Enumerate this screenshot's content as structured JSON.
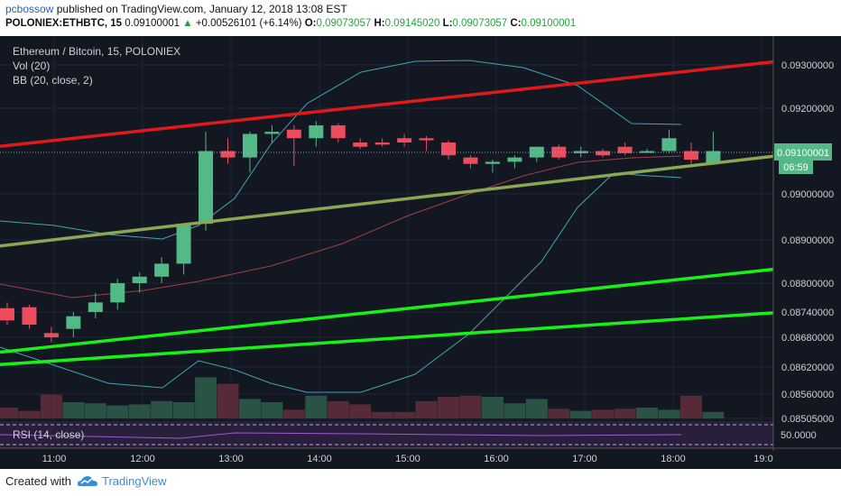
{
  "header": {
    "author": "pcbossow",
    "published_text": "published on TradingView.com, January 12, 2018 13:08 EST",
    "symbol": "POLONIEX:ETHBTC, 15",
    "last": "0.09100001",
    "change": "+0.00526101 (+6.14%)",
    "open_label": "O:",
    "open": "0.09073057",
    "high_label": "H:",
    "high": "0.09145020",
    "low_label": "L:",
    "low": "0.09073057",
    "close_label": "C:",
    "close": "0.09100001"
  },
  "legend": {
    "title": "Ethereum / Bitcoin, 15, POLONIEX",
    "vol": "Vol (20)",
    "bb": "BB (20, close, 2)",
    "rsi": "RSI (14, close)"
  },
  "price_axis": {
    "labels": [
      "0.09300000",
      "0.09200000",
      "0.09000000",
      "0.08900000",
      "0.08800000",
      "0.08740000",
      "0.08680000",
      "0.08620000",
      "0.08560000",
      "0.08505000"
    ],
    "current_price": "0.09100001",
    "countdown": "06:59",
    "rsi_label": "50.0000"
  },
  "time_axis": {
    "labels": [
      "11:00",
      "12:00",
      "13:00",
      "14:00",
      "15:00",
      "16:00",
      "17:00",
      "18:00",
      "19:0"
    ]
  },
  "colors": {
    "background": "#131722",
    "bull": "#53b987",
    "bear": "#eb4d5c",
    "red_line": "#e01a1a",
    "olive_line": "#8aa851",
    "green_line": "#18f018",
    "bb_band": "#3ea6b2",
    "bb_basis": "#a04040"
  },
  "chart_data": {
    "type": "candlestick",
    "title": "Ethereum / Bitcoin, 15, POLONIEX",
    "candles": [
      {
        "o": 0.08748,
        "h": 0.0876,
        "l": 0.0871,
        "c": 0.0872
      },
      {
        "o": 0.0875,
        "h": 0.08755,
        "l": 0.087,
        "c": 0.0871
      },
      {
        "o": 0.0869,
        "h": 0.08705,
        "l": 0.0867,
        "c": 0.0868
      },
      {
        "o": 0.087,
        "h": 0.0874,
        "l": 0.0868,
        "c": 0.0873
      },
      {
        "o": 0.0874,
        "h": 0.0878,
        "l": 0.08725,
        "c": 0.0876
      },
      {
        "o": 0.0876,
        "h": 0.0881,
        "l": 0.08745,
        "c": 0.088
      },
      {
        "o": 0.088,
        "h": 0.08825,
        "l": 0.0878,
        "c": 0.08815
      },
      {
        "o": 0.08815,
        "h": 0.0886,
        "l": 0.088,
        "c": 0.08845
      },
      {
        "o": 0.08845,
        "h": 0.08935,
        "l": 0.0882,
        "c": 0.08935
      },
      {
        "o": 0.08935,
        "h": 0.09145,
        "l": 0.0892,
        "c": 0.091
      },
      {
        "o": 0.091,
        "h": 0.0913,
        "l": 0.0907,
        "c": 0.09085
      },
      {
        "o": 0.09085,
        "h": 0.09145,
        "l": 0.0905,
        "c": 0.0914
      },
      {
        "o": 0.0914,
        "h": 0.0916,
        "l": 0.0912,
        "c": 0.09145
      },
      {
        "o": 0.0915,
        "h": 0.0916,
        "l": 0.09065,
        "c": 0.0913
      },
      {
        "o": 0.0913,
        "h": 0.0917,
        "l": 0.0911,
        "c": 0.0916
      },
      {
        "o": 0.0916,
        "h": 0.09165,
        "l": 0.0912,
        "c": 0.0913
      },
      {
        "o": 0.0912,
        "h": 0.0913,
        "l": 0.09105,
        "c": 0.0911
      },
      {
        "o": 0.0912,
        "h": 0.0913,
        "l": 0.0911,
        "c": 0.09115
      },
      {
        "o": 0.0913,
        "h": 0.0914,
        "l": 0.0911,
        "c": 0.0912
      },
      {
        "o": 0.0913,
        "h": 0.09135,
        "l": 0.091,
        "c": 0.09125
      },
      {
        "o": 0.0912,
        "h": 0.09125,
        "l": 0.0908,
        "c": 0.0909
      },
      {
        "o": 0.09085,
        "h": 0.0909,
        "l": 0.0906,
        "c": 0.0907
      },
      {
        "o": 0.0907,
        "h": 0.0908,
        "l": 0.0905,
        "c": 0.09075
      },
      {
        "o": 0.09075,
        "h": 0.0909,
        "l": 0.0906,
        "c": 0.09085
      },
      {
        "o": 0.09085,
        "h": 0.0911,
        "l": 0.09075,
        "c": 0.0911
      },
      {
        "o": 0.0911,
        "h": 0.09115,
        "l": 0.0908,
        "c": 0.09085
      },
      {
        "o": 0.09095,
        "h": 0.0911,
        "l": 0.09085,
        "c": 0.091
      },
      {
        "o": 0.091,
        "h": 0.09105,
        "l": 0.09085,
        "c": 0.0909
      },
      {
        "o": 0.0911,
        "h": 0.0912,
        "l": 0.0909,
        "c": 0.09095
      },
      {
        "o": 0.091,
        "h": 0.09105,
        "l": 0.09095,
        "c": 0.091
      },
      {
        "o": 0.091,
        "h": 0.0915,
        "l": 0.09095,
        "c": 0.0913
      },
      {
        "o": 0.091,
        "h": 0.0912,
        "l": 0.0907,
        "c": 0.0908
      },
      {
        "o": 0.09073,
        "h": 0.09145,
        "l": 0.09073,
        "c": 0.091
      }
    ],
    "volume": [
      1,
      0.7,
      2.2,
      1.5,
      1.4,
      1.2,
      1.3,
      1.6,
      1.5,
      3.8,
      3.2,
      1.8,
      1.5,
      0.8,
      2.1,
      1.6,
      1.3,
      0.6,
      0.6,
      1.6,
      2.0,
      2.1,
      2.0,
      1.4,
      1.8,
      0.9,
      0.7,
      0.8,
      0.9,
      1.0,
      0.8,
      2.1,
      0.6
    ],
    "lines": [
      {
        "name": "red",
        "color": "red_line",
        "x0": 0,
        "y0": 0.09111,
        "x1": 34,
        "y1": 0.09307
      },
      {
        "name": "olive",
        "color": "olive_line",
        "x0": 0,
        "y0": 0.08886,
        "x1": 34,
        "y1": 0.09088
      },
      {
        "name": "green-upper",
        "color": "green_line",
        "x0": 0,
        "y0": 0.0865,
        "x1": 34,
        "y1": 0.08832
      },
      {
        "name": "green-lower",
        "color": "green_line",
        "x0": 0,
        "y0": 0.08625,
        "x1": 34,
        "y1": 0.08738
      }
    ],
    "ylim": [
      0.08505,
      0.0935
    ]
  }
}
